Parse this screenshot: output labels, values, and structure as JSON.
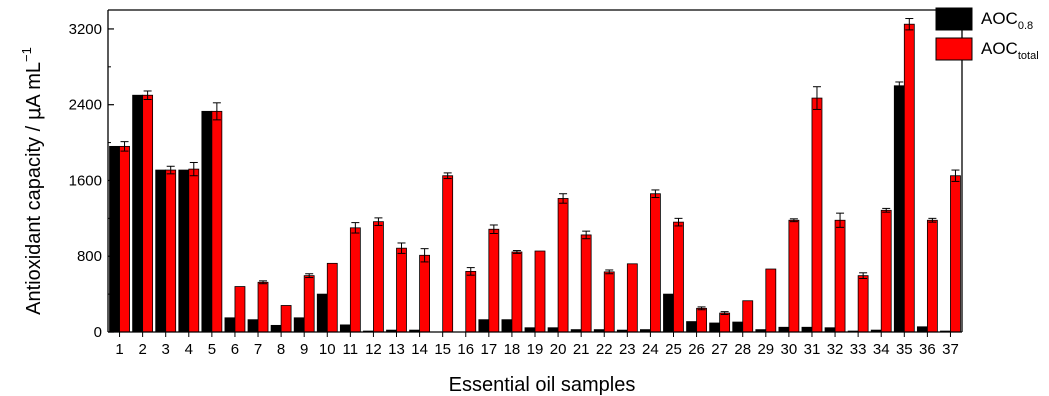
{
  "chart_data": {
    "type": "bar",
    "title": "",
    "xlabel": "Essential oil samples",
    "ylabel": {
      "main": "Antioxidant capacity / ",
      "mu": "μ",
      "unit": "A mL",
      "sup": "−1"
    },
    "ylim": [
      0,
      3400
    ],
    "yticks": [
      0,
      800,
      1600,
      2400,
      3200
    ],
    "ytick_labels": [
      "0",
      "800",
      "1600",
      "2400",
      "3200"
    ],
    "categories": [
      "1",
      "2",
      "3",
      "4",
      "5",
      "6",
      "7",
      "8",
      "9",
      "10",
      "11",
      "12",
      "13",
      "14",
      "15",
      "16",
      "17",
      "18",
      "19",
      "20",
      "21",
      "22",
      "23",
      "24",
      "25",
      "26",
      "27",
      "28",
      "29",
      "30",
      "31",
      "32",
      "33",
      "34",
      "35",
      "36",
      "37"
    ],
    "legend_position": "top-right",
    "series": [
      {
        "name": "AOC0.8",
        "legend_main": "AOC",
        "legend_sub": "0.8",
        "color": "#000000",
        "values": [
          1960,
          2500,
          1710,
          1710,
          2330,
          150,
          130,
          70,
          150,
          400,
          75,
          10,
          20,
          20,
          0,
          0,
          130,
          130,
          45,
          45,
          25,
          25,
          20,
          25,
          400,
          110,
          95,
          105,
          25,
          50,
          50,
          45,
          10,
          20,
          2600,
          55,
          10
        ],
        "errors": [
          0,
          0,
          0,
          0,
          0,
          0,
          0,
          0,
          0,
          0,
          0,
          0,
          0,
          0,
          0,
          0,
          0,
          0,
          0,
          0,
          0,
          0,
          0,
          0,
          0,
          0,
          0,
          0,
          0,
          0,
          0,
          0,
          0,
          0,
          40,
          0,
          0
        ]
      },
      {
        "name": "AOCtotal",
        "legend_main": "AOC",
        "legend_sub": "total",
        "color": "#ff0000",
        "values": [
          1960,
          2500,
          1710,
          1720,
          2330,
          480,
          525,
          280,
          595,
          725,
          1100,
          1165,
          885,
          810,
          1650,
          640,
          1085,
          845,
          855,
          1410,
          1025,
          635,
          720,
          1460,
          1160,
          250,
          200,
          330,
          665,
          1180,
          2470,
          1180,
          595,
          1285,
          3250,
          1180,
          1650
        ],
        "errors": [
          50,
          45,
          40,
          70,
          90,
          0,
          15,
          0,
          20,
          0,
          55,
          40,
          55,
          70,
          30,
          40,
          45,
          15,
          0,
          50,
          40,
          20,
          0,
          40,
          40,
          15,
          15,
          0,
          0,
          15,
          120,
          75,
          30,
          20,
          60,
          20,
          60
        ]
      }
    ]
  }
}
